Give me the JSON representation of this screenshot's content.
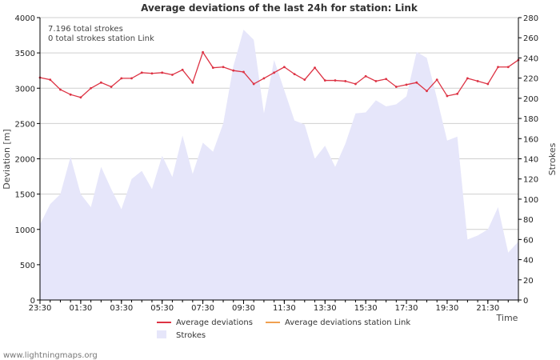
{
  "chart_data": {
    "type": "line",
    "title": "Average deviations of the last 24h for station: Link",
    "annotations": [
      "7.196 total strokes",
      "0 total strokes station Link"
    ],
    "xlabel": "Time",
    "ylabel": "Deviation  [m]",
    "y2label": "Strokes",
    "ylim": [
      0,
      4000
    ],
    "y2lim": [
      0,
      280
    ],
    "yticks": [
      0,
      500,
      1000,
      1500,
      2000,
      2500,
      3000,
      3500,
      4000
    ],
    "y2ticks": [
      0,
      20,
      40,
      60,
      80,
      100,
      120,
      140,
      160,
      180,
      200,
      220,
      240,
      260,
      280
    ],
    "x_start_index": 0,
    "x_end_index": 47,
    "xticks": [
      {
        "i": 0,
        "label": "23:30"
      },
      {
        "i": 4,
        "label": "01:30"
      },
      {
        "i": 8,
        "label": "03:30"
      },
      {
        "i": 12,
        "label": "05:30"
      },
      {
        "i": 16,
        "label": "07:30"
      },
      {
        "i": 20,
        "label": "09:30"
      },
      {
        "i": 24,
        "label": "11:30"
      },
      {
        "i": 28,
        "label": "13:30"
      },
      {
        "i": 32,
        "label": "15:30"
      },
      {
        "i": 36,
        "label": "17:30"
      },
      {
        "i": 40,
        "label": "19:30"
      },
      {
        "i": 44,
        "label": "21:30"
      }
    ],
    "series": [
      {
        "name": "Average deviations",
        "color": "#dd3344",
        "values": [
          3150,
          3120,
          2980,
          2910,
          2870,
          3000,
          3080,
          3020,
          3140,
          3140,
          3220,
          3210,
          3220,
          3190,
          3260,
          3080,
          3510,
          3290,
          3300,
          3250,
          3230,
          3060,
          3140,
          3220,
          3300,
          3200,
          3120,
          3290,
          3110,
          3110,
          3100,
          3060,
          3170,
          3100,
          3130,
          3020,
          3050,
          3080,
          2960,
          3120,
          2890,
          2920,
          3140,
          3100,
          3060,
          3300,
          3300,
          3400
        ]
      },
      {
        "name": "Average deviations station Link",
        "color": "#f0a050",
        "values": []
      },
      {
        "name": "Strokes",
        "color": "#e6e6fa",
        "axis": "right",
        "values": [
          75,
          95,
          105,
          142,
          105,
          92,
          132,
          110,
          90,
          120,
          128,
          110,
          143,
          122,
          163,
          125,
          156,
          147,
          175,
          232,
          268,
          258,
          185,
          238,
          208,
          178,
          174,
          140,
          153,
          132,
          155,
          185,
          186,
          198,
          192,
          194,
          202,
          246,
          240,
          200,
          158,
          162,
          60,
          64,
          70,
          92,
          47,
          58
        ]
      }
    ]
  },
  "footer": "www.lightningmaps.org"
}
